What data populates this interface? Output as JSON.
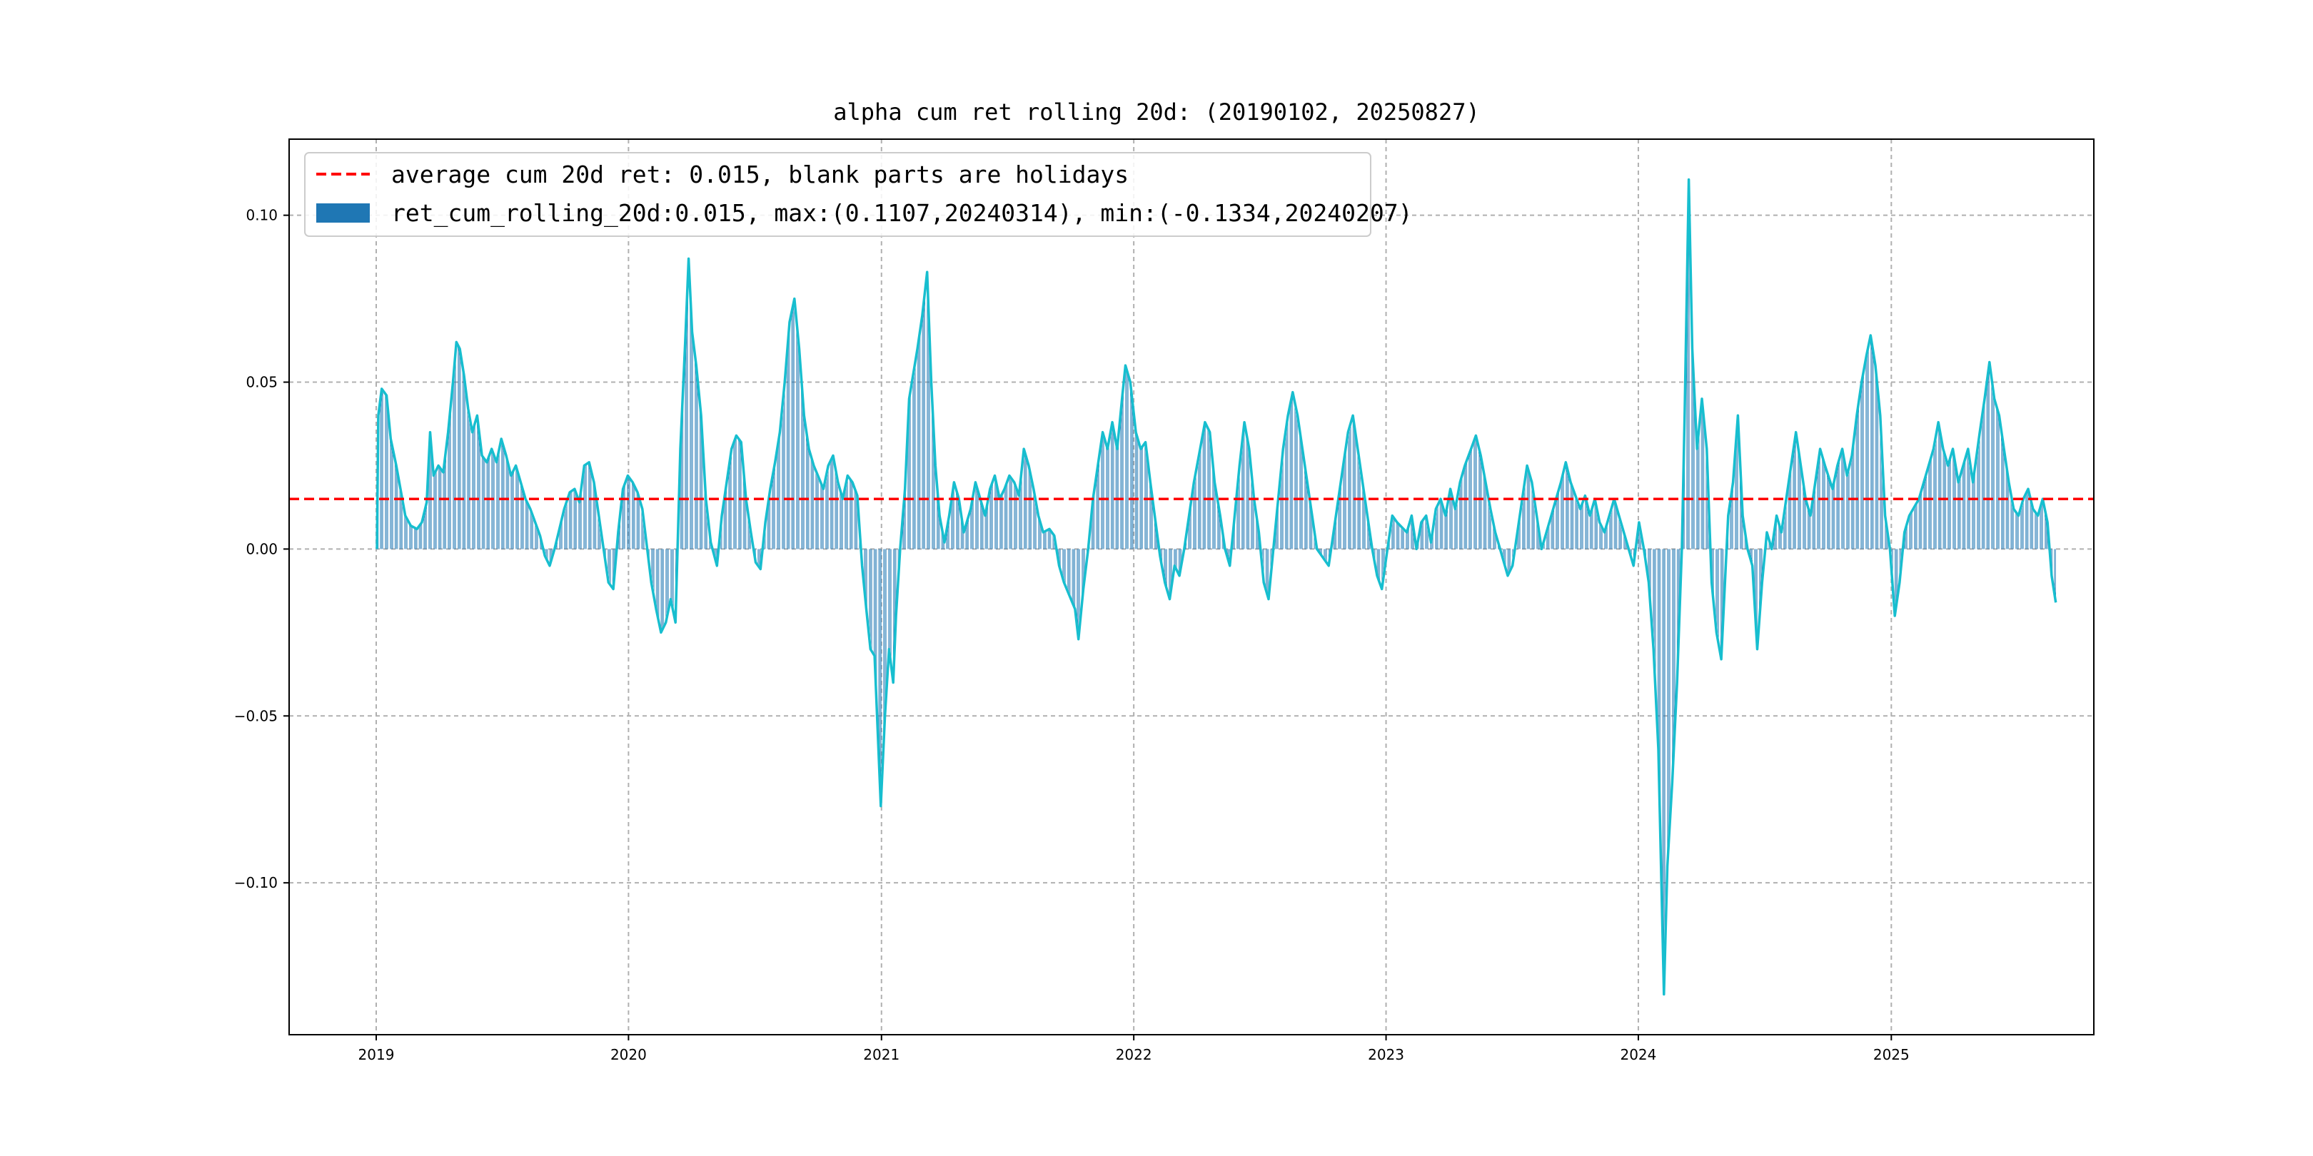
{
  "chart_data": {
    "type": "bar",
    "title": "alpha cum ret rolling 20d: (20190102, 20250827)",
    "xlabel": "",
    "ylabel": "",
    "x_tick_labels": [
      "2019",
      "2020",
      "2021",
      "2022",
      "2023",
      "2024",
      "2025"
    ],
    "y_tick_labels": [
      "0.10",
      "0.05",
      "0.00",
      "−0.05",
      "−0.10"
    ],
    "y_ticks": [
      0.1,
      0.05,
      0.0,
      -0.05,
      -0.1
    ],
    "xlim": [
      "2018-08-28",
      "2025-10-21"
    ],
    "ylim": [
      -0.1455,
      0.1228
    ],
    "grid": true,
    "legend_position": "top-left",
    "average_line": {
      "value": 0.015,
      "color": "#ff0000",
      "style": "dashed",
      "label": "average cum 20d ret: 0.015, blank parts are holidays"
    },
    "series": [
      {
        "name": "ret_cum_rolling_20d:0.015, max:(0.1107,20240314), min:(-0.1334,20240207)",
        "kind": "bar",
        "color": "#1f77b4"
      },
      {
        "kind": "line",
        "color": "#17becf"
      }
    ],
    "max_point": {
      "date": "2024-03-14",
      "value": 0.1107
    },
    "min_point": {
      "date": "2024-02-07",
      "value": -0.1334
    },
    "points": [
      [
        "2019-01-02",
        0.0
      ],
      [
        "2019-01-04",
        0.04
      ],
      [
        "2019-01-09",
        0.048
      ],
      [
        "2019-01-16",
        0.046
      ],
      [
        "2019-01-22",
        0.033
      ],
      [
        "2019-01-30",
        0.025
      ],
      [
        "2019-02-12",
        0.01
      ],
      [
        "2019-02-20",
        0.007
      ],
      [
        "2019-03-01",
        0.006
      ],
      [
        "2019-03-08",
        0.008
      ],
      [
        "2019-03-15",
        0.014
      ],
      [
        "2019-03-20",
        0.035
      ],
      [
        "2019-03-25",
        0.022
      ],
      [
        "2019-04-01",
        0.025
      ],
      [
        "2019-04-08",
        0.023
      ],
      [
        "2019-04-15",
        0.035
      ],
      [
        "2019-04-22",
        0.05
      ],
      [
        "2019-04-27",
        0.062
      ],
      [
        "2019-05-02",
        0.06
      ],
      [
        "2019-05-08",
        0.052
      ],
      [
        "2019-05-14",
        0.042
      ],
      [
        "2019-05-20",
        0.035
      ],
      [
        "2019-05-27",
        0.04
      ],
      [
        "2019-06-03",
        0.028
      ],
      [
        "2019-06-10",
        0.026
      ],
      [
        "2019-06-17",
        0.03
      ],
      [
        "2019-06-24",
        0.026
      ],
      [
        "2019-07-01",
        0.033
      ],
      [
        "2019-07-08",
        0.028
      ],
      [
        "2019-07-15",
        0.022
      ],
      [
        "2019-07-22",
        0.025
      ],
      [
        "2019-07-29",
        0.02
      ],
      [
        "2019-08-05",
        0.015
      ],
      [
        "2019-08-12",
        0.012
      ],
      [
        "2019-08-19",
        0.008
      ],
      [
        "2019-08-26",
        0.004
      ],
      [
        "2019-09-02",
        -0.002
      ],
      [
        "2019-09-09",
        -0.005
      ],
      [
        "2019-09-16",
        0.0
      ],
      [
        "2019-09-23",
        0.006
      ],
      [
        "2019-09-30",
        0.012
      ],
      [
        "2019-10-08",
        0.017
      ],
      [
        "2019-10-15",
        0.018
      ],
      [
        "2019-10-22",
        0.014
      ],
      [
        "2019-10-29",
        0.025
      ],
      [
        "2019-11-05",
        0.026
      ],
      [
        "2019-11-12",
        0.02
      ],
      [
        "2019-11-19",
        0.01
      ],
      [
        "2019-11-26",
        0.0
      ],
      [
        "2019-12-03",
        -0.01
      ],
      [
        "2019-12-10",
        -0.012
      ],
      [
        "2019-12-17",
        0.005
      ],
      [
        "2019-12-24",
        0.018
      ],
      [
        "2019-12-31",
        0.022
      ],
      [
        "2020-01-07",
        0.02
      ],
      [
        "2020-01-14",
        0.017
      ],
      [
        "2020-01-21",
        0.012
      ],
      [
        "2020-02-03",
        -0.01
      ],
      [
        "2020-02-10",
        -0.018
      ],
      [
        "2020-02-17",
        -0.025
      ],
      [
        "2020-02-24",
        -0.022
      ],
      [
        "2020-03-02",
        -0.015
      ],
      [
        "2020-03-09",
        -0.022
      ],
      [
        "2020-03-16",
        0.03
      ],
      [
        "2020-03-23",
        0.062
      ],
      [
        "2020-03-28",
        0.087
      ],
      [
        "2020-04-02",
        0.065
      ],
      [
        "2020-04-08",
        0.055
      ],
      [
        "2020-04-15",
        0.04
      ],
      [
        "2020-04-22",
        0.015
      ],
      [
        "2020-04-29",
        0.002
      ],
      [
        "2020-05-08",
        -0.005
      ],
      [
        "2020-05-15",
        0.01
      ],
      [
        "2020-05-22",
        0.02
      ],
      [
        "2020-05-29",
        0.03
      ],
      [
        "2020-06-05",
        0.034
      ],
      [
        "2020-06-12",
        0.032
      ],
      [
        "2020-06-19",
        0.015
      ],
      [
        "2020-06-26",
        0.005
      ],
      [
        "2020-07-03",
        -0.004
      ],
      [
        "2020-07-10",
        -0.006
      ],
      [
        "2020-07-17",
        0.008
      ],
      [
        "2020-07-24",
        0.018
      ],
      [
        "2020-07-31",
        0.026
      ],
      [
        "2020-08-07",
        0.035
      ],
      [
        "2020-08-14",
        0.05
      ],
      [
        "2020-08-21",
        0.068
      ],
      [
        "2020-08-28",
        0.075
      ],
      [
        "2020-09-04",
        0.06
      ],
      [
        "2020-09-11",
        0.04
      ],
      [
        "2020-09-18",
        0.03
      ],
      [
        "2020-09-25",
        0.025
      ],
      [
        "2020-10-09",
        0.018
      ],
      [
        "2020-10-16",
        0.025
      ],
      [
        "2020-10-23",
        0.028
      ],
      [
        "2020-10-30",
        0.02
      ],
      [
        "2020-11-06",
        0.015
      ],
      [
        "2020-11-13",
        0.022
      ],
      [
        "2020-11-20",
        0.02
      ],
      [
        "2020-11-27",
        0.016
      ],
      [
        "2020-12-04",
        -0.005
      ],
      [
        "2020-12-10",
        -0.018
      ],
      [
        "2020-12-16",
        -0.03
      ],
      [
        "2020-12-22",
        -0.032
      ],
      [
        "2020-12-28",
        -0.062
      ],
      [
        "2020-12-31",
        -0.077
      ],
      [
        "2021-01-06",
        -0.05
      ],
      [
        "2021-01-12",
        -0.03
      ],
      [
        "2021-01-18",
        -0.04
      ],
      [
        "2021-01-22",
        -0.02
      ],
      [
        "2021-01-28",
        0.0
      ],
      [
        "2021-02-04",
        0.018
      ],
      [
        "2021-02-10",
        0.045
      ],
      [
        "2021-02-22",
        0.06
      ],
      [
        "2021-03-01",
        0.07
      ],
      [
        "2021-03-08",
        0.083
      ],
      [
        "2021-03-14",
        0.05
      ],
      [
        "2021-03-20",
        0.025
      ],
      [
        "2021-03-26",
        0.01
      ],
      [
        "2021-04-02",
        0.002
      ],
      [
        "2021-04-09",
        0.01
      ],
      [
        "2021-04-16",
        0.02
      ],
      [
        "2021-04-23",
        0.015
      ],
      [
        "2021-04-30",
        0.005
      ],
      [
        "2021-05-10",
        0.012
      ],
      [
        "2021-05-17",
        0.02
      ],
      [
        "2021-05-24",
        0.015
      ],
      [
        "2021-05-31",
        0.01
      ],
      [
        "2021-06-07",
        0.018
      ],
      [
        "2021-06-14",
        0.022
      ],
      [
        "2021-06-21",
        0.015
      ],
      [
        "2021-06-28",
        0.018
      ],
      [
        "2021-07-05",
        0.022
      ],
      [
        "2021-07-12",
        0.02
      ],
      [
        "2021-07-19",
        0.016
      ],
      [
        "2021-07-26",
        0.03
      ],
      [
        "2021-08-02",
        0.025
      ],
      [
        "2021-08-09",
        0.018
      ],
      [
        "2021-08-16",
        0.01
      ],
      [
        "2021-08-23",
        0.005
      ],
      [
        "2021-09-01",
        0.006
      ],
      [
        "2021-09-08",
        0.004
      ],
      [
        "2021-09-15",
        -0.005
      ],
      [
        "2021-09-22",
        -0.01
      ],
      [
        "2021-10-08",
        -0.018
      ],
      [
        "2021-10-13",
        -0.027
      ],
      [
        "2021-10-20",
        -0.012
      ],
      [
        "2021-10-27",
        0.0
      ],
      [
        "2021-11-03",
        0.015
      ],
      [
        "2021-11-10",
        0.025
      ],
      [
        "2021-11-17",
        0.035
      ],
      [
        "2021-11-24",
        0.03
      ],
      [
        "2021-12-01",
        0.038
      ],
      [
        "2021-12-08",
        0.03
      ],
      [
        "2021-12-15",
        0.045
      ],
      [
        "2021-12-20",
        0.055
      ],
      [
        "2021-12-27",
        0.05
      ],
      [
        "2022-01-04",
        0.035
      ],
      [
        "2022-01-11",
        0.03
      ],
      [
        "2022-01-18",
        0.032
      ],
      [
        "2022-01-25",
        0.02
      ],
      [
        "2022-02-08",
        -0.002
      ],
      [
        "2022-02-15",
        -0.01
      ],
      [
        "2022-02-22",
        -0.015
      ],
      [
        "2022-03-01",
        -0.005
      ],
      [
        "2022-03-08",
        -0.008
      ],
      [
        "2022-03-15",
        0.0
      ],
      [
        "2022-03-22",
        0.01
      ],
      [
        "2022-03-29",
        0.02
      ],
      [
        "2022-04-07",
        0.03
      ],
      [
        "2022-04-14",
        0.038
      ],
      [
        "2022-04-21",
        0.035
      ],
      [
        "2022-04-28",
        0.02
      ],
      [
        "2022-05-06",
        0.01
      ],
      [
        "2022-05-13",
        0.0
      ],
      [
        "2022-05-20",
        -0.005
      ],
      [
        "2022-05-27",
        0.01
      ],
      [
        "2022-06-03",
        0.025
      ],
      [
        "2022-06-10",
        0.038
      ],
      [
        "2022-06-17",
        0.03
      ],
      [
        "2022-06-24",
        0.015
      ],
      [
        "2022-07-01",
        0.005
      ],
      [
        "2022-07-08",
        -0.01
      ],
      [
        "2022-07-15",
        -0.015
      ],
      [
        "2022-07-22",
        0.0
      ],
      [
        "2022-07-29",
        0.015
      ],
      [
        "2022-08-05",
        0.03
      ],
      [
        "2022-08-12",
        0.04
      ],
      [
        "2022-08-19",
        0.047
      ],
      [
        "2022-08-26",
        0.04
      ],
      [
        "2022-09-02",
        0.03
      ],
      [
        "2022-09-09",
        0.02
      ],
      [
        "2022-09-16",
        0.01
      ],
      [
        "2022-09-23",
        0.0
      ],
      [
        "2022-10-10",
        -0.005
      ],
      [
        "2022-10-17",
        0.005
      ],
      [
        "2022-10-24",
        0.015
      ],
      [
        "2022-10-31",
        0.025
      ],
      [
        "2022-11-07",
        0.035
      ],
      [
        "2022-11-14",
        0.04
      ],
      [
        "2022-11-21",
        0.03
      ],
      [
        "2022-11-28",
        0.02
      ],
      [
        "2022-12-05",
        0.01
      ],
      [
        "2022-12-12",
        0.0
      ],
      [
        "2022-12-19",
        -0.008
      ],
      [
        "2022-12-26",
        -0.012
      ],
      [
        "2023-01-03",
        0.0
      ],
      [
        "2023-01-10",
        0.01
      ],
      [
        "2023-01-17",
        0.008
      ],
      [
        "2023-01-31",
        0.005
      ],
      [
        "2023-02-07",
        0.01
      ],
      [
        "2023-02-14",
        0.0
      ],
      [
        "2023-02-21",
        0.008
      ],
      [
        "2023-02-28",
        0.01
      ],
      [
        "2023-03-07",
        0.002
      ],
      [
        "2023-03-14",
        0.012
      ],
      [
        "2023-03-21",
        0.015
      ],
      [
        "2023-03-28",
        0.01
      ],
      [
        "2023-04-04",
        0.018
      ],
      [
        "2023-04-11",
        0.012
      ],
      [
        "2023-04-18",
        0.02
      ],
      [
        "2023-04-25",
        0.025
      ],
      [
        "2023-05-04",
        0.03
      ],
      [
        "2023-05-11",
        0.034
      ],
      [
        "2023-05-18",
        0.028
      ],
      [
        "2023-05-25",
        0.02
      ],
      [
        "2023-06-01",
        0.012
      ],
      [
        "2023-06-08",
        0.005
      ],
      [
        "2023-06-15",
        0.0
      ],
      [
        "2023-06-26",
        -0.008
      ],
      [
        "2023-07-03",
        -0.005
      ],
      [
        "2023-07-10",
        0.005
      ],
      [
        "2023-07-17",
        0.015
      ],
      [
        "2023-07-24",
        0.025
      ],
      [
        "2023-07-31",
        0.02
      ],
      [
        "2023-08-07",
        0.01
      ],
      [
        "2023-08-14",
        0.0
      ],
      [
        "2023-08-21",
        0.005
      ],
      [
        "2023-08-28",
        0.01
      ],
      [
        "2023-09-04",
        0.015
      ],
      [
        "2023-09-11",
        0.02
      ],
      [
        "2023-09-18",
        0.026
      ],
      [
        "2023-09-25",
        0.02
      ],
      [
        "2023-10-09",
        0.012
      ],
      [
        "2023-10-16",
        0.016
      ],
      [
        "2023-10-23",
        0.01
      ],
      [
        "2023-10-30",
        0.015
      ],
      [
        "2023-11-06",
        0.008
      ],
      [
        "2023-11-13",
        0.005
      ],
      [
        "2023-11-20",
        0.01
      ],
      [
        "2023-11-27",
        0.015
      ],
      [
        "2023-12-04",
        0.01
      ],
      [
        "2023-12-11",
        0.005
      ],
      [
        "2023-12-18",
        0.0
      ],
      [
        "2023-12-25",
        -0.005
      ],
      [
        "2024-01-02",
        0.008
      ],
      [
        "2024-01-09",
        0.0
      ],
      [
        "2024-01-16",
        -0.01
      ],
      [
        "2024-01-23",
        -0.03
      ],
      [
        "2024-01-30",
        -0.06
      ],
      [
        "2024-02-07",
        -0.1334
      ],
      [
        "2024-02-12",
        -0.095
      ],
      [
        "2024-02-19",
        -0.07
      ],
      [
        "2024-02-26",
        -0.04
      ],
      [
        "2024-03-04",
        0.0
      ],
      [
        "2024-03-08",
        0.04
      ],
      [
        "2024-03-14",
        0.1107
      ],
      [
        "2024-03-19",
        0.06
      ],
      [
        "2024-03-26",
        0.03
      ],
      [
        "2024-04-02",
        0.045
      ],
      [
        "2024-04-09",
        0.03
      ],
      [
        "2024-04-16",
        -0.01
      ],
      [
        "2024-04-23",
        -0.025
      ],
      [
        "2024-04-30",
        -0.033
      ],
      [
        "2024-05-10",
        0.01
      ],
      [
        "2024-05-17",
        0.02
      ],
      [
        "2024-05-24",
        0.04
      ],
      [
        "2024-05-31",
        0.01
      ],
      [
        "2024-06-07",
        0.0
      ],
      [
        "2024-06-14",
        -0.005
      ],
      [
        "2024-06-21",
        -0.03
      ],
      [
        "2024-06-28",
        -0.01
      ],
      [
        "2024-07-05",
        0.005
      ],
      [
        "2024-07-12",
        0.0
      ],
      [
        "2024-07-19",
        0.01
      ],
      [
        "2024-07-26",
        0.005
      ],
      [
        "2024-08-02",
        0.015
      ],
      [
        "2024-08-09",
        0.025
      ],
      [
        "2024-08-16",
        0.035
      ],
      [
        "2024-08-23",
        0.025
      ],
      [
        "2024-08-30",
        0.015
      ],
      [
        "2024-09-06",
        0.01
      ],
      [
        "2024-09-13",
        0.02
      ],
      [
        "2024-09-20",
        0.03
      ],
      [
        "2024-09-27",
        0.025
      ],
      [
        "2024-10-08",
        0.018
      ],
      [
        "2024-10-15",
        0.025
      ],
      [
        "2024-10-22",
        0.03
      ],
      [
        "2024-10-29",
        0.022
      ],
      [
        "2024-11-05",
        0.028
      ],
      [
        "2024-11-12",
        0.04
      ],
      [
        "2024-11-19",
        0.05
      ],
      [
        "2024-11-26",
        0.058
      ],
      [
        "2024-12-02",
        0.064
      ],
      [
        "2024-12-09",
        0.055
      ],
      [
        "2024-12-16",
        0.04
      ],
      [
        "2024-12-23",
        0.01
      ],
      [
        "2024-12-30",
        0.0
      ],
      [
        "2025-01-06",
        -0.02
      ],
      [
        "2025-01-13",
        -0.01
      ],
      [
        "2025-01-20",
        0.005
      ],
      [
        "2025-01-27",
        0.01
      ],
      [
        "2025-02-10",
        0.015
      ],
      [
        "2025-02-17",
        0.02
      ],
      [
        "2025-02-24",
        0.025
      ],
      [
        "2025-03-03",
        0.03
      ],
      [
        "2025-03-10",
        0.038
      ],
      [
        "2025-03-17",
        0.03
      ],
      [
        "2025-03-24",
        0.025
      ],
      [
        "2025-03-31",
        0.03
      ],
      [
        "2025-04-08",
        0.02
      ],
      [
        "2025-04-15",
        0.025
      ],
      [
        "2025-04-22",
        0.03
      ],
      [
        "2025-04-29",
        0.02
      ],
      [
        "2025-05-09",
        0.035
      ],
      [
        "2025-05-16",
        0.045
      ],
      [
        "2025-05-23",
        0.056
      ],
      [
        "2025-05-30",
        0.045
      ],
      [
        "2025-06-06",
        0.04
      ],
      [
        "2025-06-13",
        0.03
      ],
      [
        "2025-06-20",
        0.02
      ],
      [
        "2025-06-27",
        0.012
      ],
      [
        "2025-07-04",
        0.01
      ],
      [
        "2025-07-11",
        0.015
      ],
      [
        "2025-07-18",
        0.018
      ],
      [
        "2025-07-25",
        0.012
      ],
      [
        "2025-08-01",
        0.01
      ],
      [
        "2025-08-08",
        0.015
      ],
      [
        "2025-08-15",
        0.008
      ],
      [
        "2025-08-21",
        -0.008
      ],
      [
        "2025-08-27",
        -0.016
      ]
    ]
  }
}
